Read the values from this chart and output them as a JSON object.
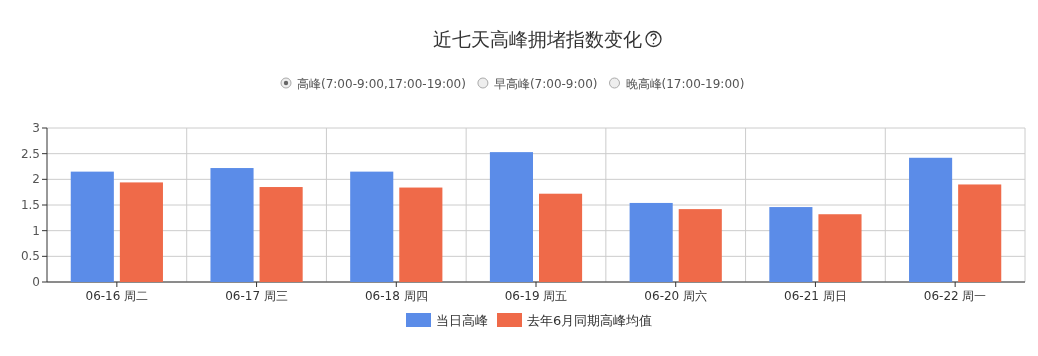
{
  "chart_data": {
    "type": "bar",
    "title": "近七天高峰拥堵指数变化",
    "annotations": [
      "高峰(7:00-9:00,17:00-19:00)",
      "早高峰(7:00-9:00)",
      "晚高峰(17:00-19:00)"
    ],
    "categories": [
      "06-16 周二",
      "06-17 周三",
      "06-18 周四",
      "06-19 周五",
      "06-20 周六",
      "06-21 周日",
      "06-22 周一"
    ],
    "series": [
      {
        "name": "当日高峰",
        "color": "#5b8ce8",
        "values": [
          2.15,
          2.22,
          2.15,
          2.53,
          1.54,
          1.46,
          2.42
        ]
      },
      {
        "name": "去年6月同期高峰均值",
        "color": "#ef6a49",
        "values": [
          1.94,
          1.85,
          1.84,
          1.72,
          1.42,
          1.32,
          1.9
        ]
      }
    ],
    "ylim": [
      0,
      3
    ],
    "yticks": [
      0,
      0.5,
      1,
      1.5,
      2,
      2.5,
      3
    ],
    "grid": true,
    "legend": "bottom"
  }
}
